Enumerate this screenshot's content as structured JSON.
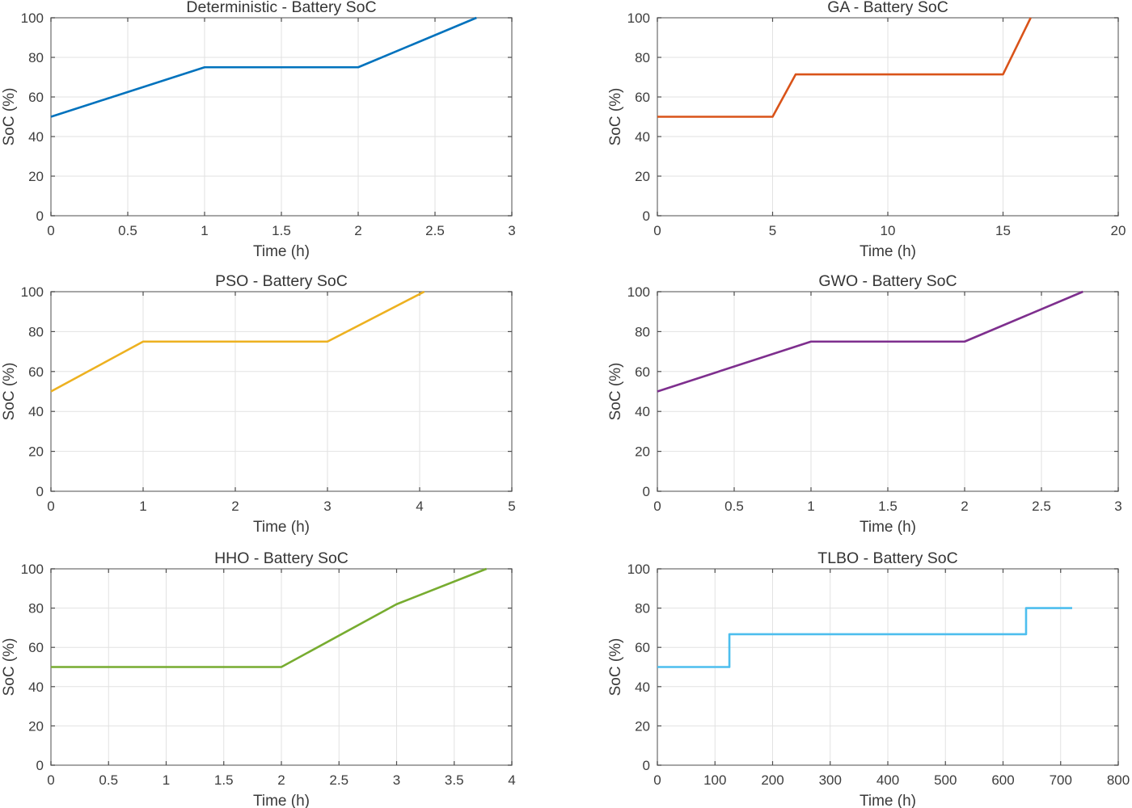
{
  "figure": {
    "background": "#ffffff",
    "style": {
      "grid_color": "#e2e2e2",
      "box_color": "#818181",
      "tick_color": "#4d4d4d",
      "tick_label_color": "#3d3d3d",
      "axis_label_color": "#3a3a3a",
      "title_color": "#353535"
    }
  },
  "chart_data": [
    {
      "type": "line",
      "title": "Deterministic - Battery SoC",
      "xlabel": "Time (h)",
      "ylabel": "SoC (%)",
      "line_color": "#0072BD",
      "xlim": [
        0,
        3
      ],
      "ylim": [
        0,
        100
      ],
      "xticks": [
        0,
        0.5,
        1,
        1.5,
        2,
        2.5,
        3
      ],
      "xtick_labels": [
        "0",
        "0.5",
        "1",
        "1.5",
        "2",
        "2.5",
        "3"
      ],
      "yticks": [
        0,
        20,
        40,
        60,
        80,
        100
      ],
      "ytick_labels": [
        "0",
        "20",
        "40",
        "60",
        "80",
        "100"
      ],
      "grid": true,
      "legend": "none",
      "points": [
        [
          0,
          50
        ],
        [
          1,
          75
        ],
        [
          2,
          75
        ],
        [
          2.77,
          100
        ]
      ]
    },
    {
      "type": "line",
      "title": "GA - Battery SoC",
      "xlabel": "Time (h)",
      "ylabel": "SoC (%)",
      "line_color": "#D95319",
      "xlim": [
        0,
        20
      ],
      "ylim": [
        0,
        100
      ],
      "xticks": [
        0,
        5,
        10,
        15,
        20
      ],
      "xtick_labels": [
        "0",
        "5",
        "10",
        "15",
        "20"
      ],
      "yticks": [
        0,
        20,
        40,
        60,
        80,
        100
      ],
      "ytick_labels": [
        "0",
        "20",
        "40",
        "60",
        "80",
        "100"
      ],
      "grid": true,
      "legend": "none",
      "points": [
        [
          0,
          50
        ],
        [
          5,
          50
        ],
        [
          6,
          71.4
        ],
        [
          15,
          71.4
        ],
        [
          16.2,
          100
        ]
      ]
    },
    {
      "type": "line",
      "title": "PSO - Battery SoC",
      "xlabel": "Time (h)",
      "ylabel": "SoC (%)",
      "line_color": "#EDB120",
      "xlim": [
        0,
        5
      ],
      "ylim": [
        0,
        100
      ],
      "xticks": [
        0,
        1,
        2,
        3,
        4,
        5
      ],
      "xtick_labels": [
        "0",
        "1",
        "2",
        "3",
        "4",
        "5"
      ],
      "yticks": [
        0,
        20,
        40,
        60,
        80,
        100
      ],
      "ytick_labels": [
        "0",
        "20",
        "40",
        "60",
        "80",
        "100"
      ],
      "grid": true,
      "legend": "none",
      "points": [
        [
          0,
          50
        ],
        [
          1,
          75
        ],
        [
          3,
          75
        ],
        [
          4.05,
          100
        ]
      ]
    },
    {
      "type": "line",
      "title": "GWO - Battery SoC",
      "xlabel": "Time (h)",
      "ylabel": "SoC (%)",
      "line_color": "#7E2F8E",
      "xlim": [
        0,
        3
      ],
      "ylim": [
        0,
        100
      ],
      "xticks": [
        0,
        0.5,
        1,
        1.5,
        2,
        2.5,
        3
      ],
      "xtick_labels": [
        "0",
        "0.5",
        "1",
        "1.5",
        "2",
        "2.5",
        "3"
      ],
      "yticks": [
        0,
        20,
        40,
        60,
        80,
        100
      ],
      "ytick_labels": [
        "0",
        "20",
        "40",
        "60",
        "80",
        "100"
      ],
      "grid": true,
      "legend": "none",
      "points": [
        [
          0,
          50
        ],
        [
          1,
          75
        ],
        [
          2,
          75
        ],
        [
          2.77,
          100
        ]
      ]
    },
    {
      "type": "line",
      "title": "HHO - Battery SoC",
      "xlabel": "Time (h)",
      "ylabel": "SoC (%)",
      "line_color": "#77AC30",
      "xlim": [
        0,
        4
      ],
      "ylim": [
        0,
        100
      ],
      "xticks": [
        0,
        0.5,
        1,
        1.5,
        2,
        2.5,
        3,
        3.5,
        4
      ],
      "xtick_labels": [
        "0",
        "0.5",
        "1",
        "1.5",
        "2",
        "2.5",
        "3",
        "3.5",
        "4"
      ],
      "yticks": [
        0,
        20,
        40,
        60,
        80,
        100
      ],
      "ytick_labels": [
        "0",
        "20",
        "40",
        "60",
        "80",
        "100"
      ],
      "grid": true,
      "legend": "none",
      "points": [
        [
          0,
          50
        ],
        [
          2,
          50
        ],
        [
          3,
          82
        ],
        [
          3.78,
          100
        ]
      ]
    },
    {
      "type": "line",
      "title": "TLBO - Battery SoC",
      "xlabel": "Time (h)",
      "ylabel": "SoC (%)",
      "line_color": "#4DBEEE",
      "xlim": [
        0,
        800
      ],
      "ylim": [
        0,
        100
      ],
      "xticks": [
        0,
        100,
        200,
        300,
        400,
        500,
        600,
        700,
        800
      ],
      "xtick_labels": [
        "0",
        "100",
        "200",
        "300",
        "400",
        "500",
        "600",
        "700",
        "800"
      ],
      "yticks": [
        0,
        20,
        40,
        60,
        80,
        100
      ],
      "ytick_labels": [
        "0",
        "20",
        "40",
        "60",
        "80",
        "100"
      ],
      "grid": true,
      "legend": "none",
      "points": [
        [
          0,
          50
        ],
        [
          125,
          50
        ],
        [
          125,
          66.7
        ],
        [
          640,
          66.7
        ],
        [
          640,
          80
        ],
        [
          720,
          80
        ]
      ]
    }
  ]
}
